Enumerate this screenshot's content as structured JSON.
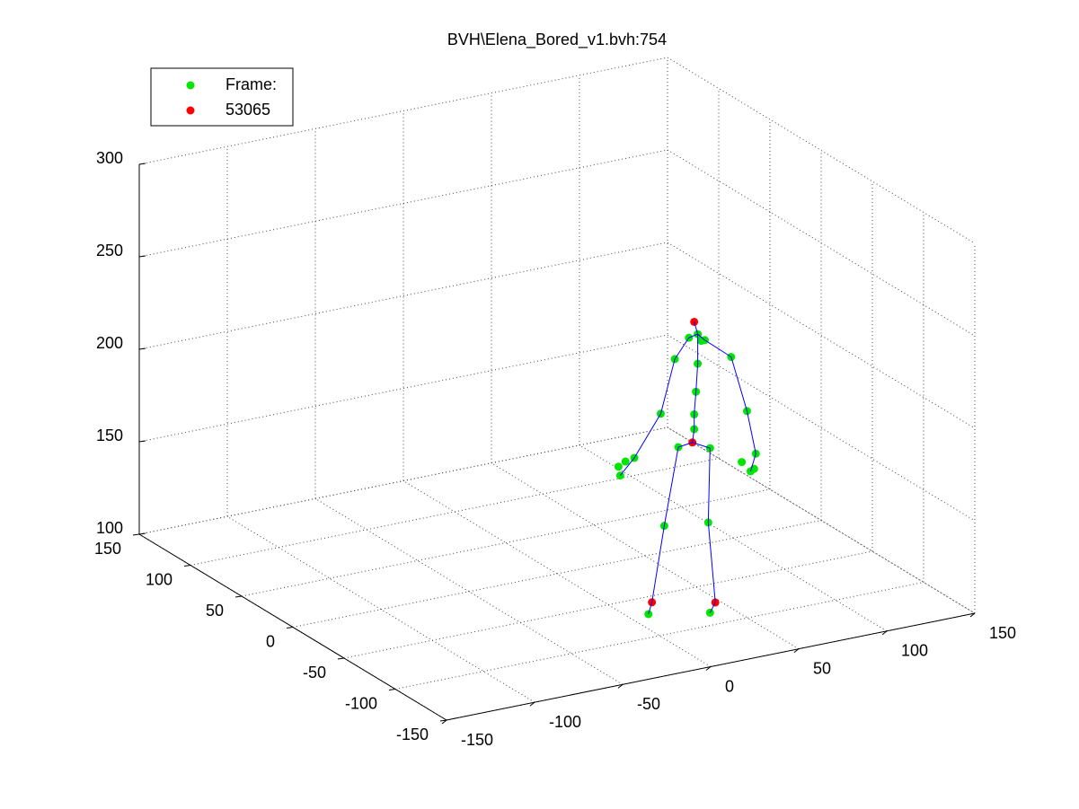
{
  "chart_data": {
    "type": "plot3",
    "title": "BVH\\Elena_Bored_v1.bvh:754",
    "xlim": [
      -150,
      150
    ],
    "ylim": [
      -150,
      150
    ],
    "zlim": [
      100,
      300
    ],
    "xticks": [
      -150,
      -100,
      -50,
      0,
      50,
      100,
      150
    ],
    "yticks": [
      -150,
      -100,
      -50,
      0,
      50,
      100,
      150
    ],
    "zticks": [
      100,
      150,
      200,
      250,
      300
    ],
    "grid": true,
    "legend_location": "northwest",
    "series": [
      {
        "name": "Frame:",
        "color": "#00e600",
        "marker": "o",
        "linestyle": "none",
        "x": [
          43,
          43,
          44,
          45,
          45,
          40,
          49,
          47,
          32,
          24,
          9,
          4,
          1,
          0,
          64,
          73,
          78,
          75,
          70,
          77,
          34,
          26,
          17,
          52,
          51,
          52
        ],
        "y": [
          -60,
          -60,
          -60,
          -60,
          -60,
          -60,
          -60,
          -60,
          -60,
          -60,
          -60,
          -60,
          -60,
          -60,
          -60,
          -60,
          -60,
          -60,
          -60,
          -60,
          -60,
          -60,
          -60,
          -60,
          -60,
          -60
        ],
        "z": [
          190,
          198,
          210,
          225,
          241,
          240,
          237,
          237,
          230,
          202,
          181,
          180,
          173,
          178,
          225,
          194,
          170,
          161,
          167,
          162,
          182,
          141,
          95,
          178,
          138,
          89
        ]
      },
      {
        "name": "53065",
        "color": "#ff0000",
        "marker": "o",
        "linestyle": "none",
        "x": [
          43,
          42,
          19,
          55
        ],
        "y": [
          -60,
          -60,
          -60,
          -60
        ],
        "z": [
          248,
          183,
          101,
          94
        ]
      },
      {
        "color": "#0000ff",
        "marker": "none",
        "linestyle": "-",
        "x": [
          42,
          43,
          43,
          44,
          45,
          45,
          43,
          null,
          40,
          32,
          24,
          9,
          1,
          null,
          49,
          64,
          73,
          78,
          75,
          null,
          40,
          45,
          49,
          null,
          42,
          34,
          26,
          19,
          17,
          null,
          42,
          52,
          51,
          55,
          52
        ],
        "y": [
          -60,
          -60,
          -60,
          -60,
          -60,
          -60,
          -60,
          null,
          -60,
          -60,
          -60,
          -60,
          -60,
          null,
          -60,
          -60,
          -60,
          -60,
          -60,
          null,
          -60,
          -60,
          -60,
          null,
          -60,
          -60,
          -60,
          -60,
          -60,
          null,
          -60,
          -60,
          -60,
          -60,
          -60
        ],
        "z": [
          183,
          190,
          198,
          210,
          225,
          241,
          248,
          null,
          240,
          230,
          202,
          181,
          173,
          null,
          237,
          225,
          194,
          170,
          161,
          null,
          240,
          241,
          237,
          null,
          183,
          182,
          141,
          101,
          95,
          null,
          183,
          178,
          138,
          94,
          89
        ]
      }
    ]
  }
}
